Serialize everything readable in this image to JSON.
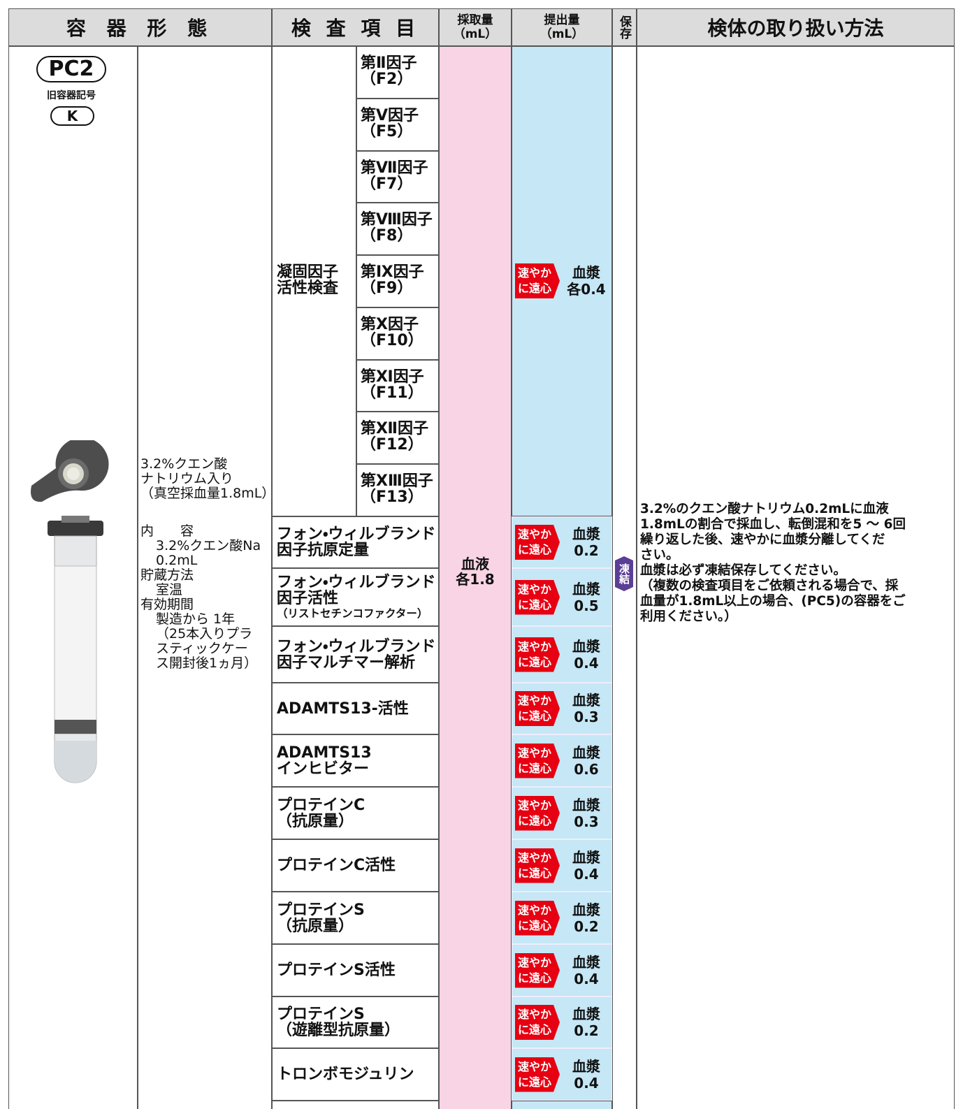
{
  "header": {
    "container": "容 器 形 態",
    "test": "検 査 項 目",
    "collection": [
      "採取量",
      "（mL）"
    ],
    "submission": [
      "提出量",
      "（mL）"
    ],
    "storage": "保存",
    "handling": "検体の取り扱い方法"
  },
  "container": {
    "code": "PC2",
    "old_label": "旧容器記号",
    "old_code": "K",
    "description": [
      "3.2%クエン酸",
      "ナトリウム入り",
      "（真空採血量1.8mL）"
    ],
    "contents_label": "内　　容",
    "contents": [
      "3.2%クエン酸Na",
      "0.2mL"
    ],
    "storage_label": "貯蔵方法",
    "storage": "室温",
    "expiry_label": "有効期間",
    "expiry": [
      "製造から 1年",
      "（25本入りプラ",
      "スティックケー",
      "ス開封後1ヵ月）"
    ]
  },
  "group": {
    "name": [
      "凝固因子",
      "活性検査"
    ],
    "items": [
      [
        "第Ⅱ因子",
        "（F2）"
      ],
      [
        "第Ⅴ因子",
        "（F5）"
      ],
      [
        "第Ⅶ因子",
        "（F7）"
      ],
      [
        "第Ⅷ因子",
        "（F8）"
      ],
      [
        "第Ⅸ因子",
        "（F9）"
      ],
      [
        "第Ⅹ因子",
        "（F10）"
      ],
      [
        "第Ⅺ因子",
        "（F11）"
      ],
      [
        "第Ⅻ因子",
        "（F12）"
      ],
      [
        "第ⅩⅢ因子",
        "（F13）"
      ]
    ],
    "badge": [
      "速やか",
      "に遠心"
    ],
    "amount": [
      "血漿",
      "各0.4"
    ]
  },
  "tests": [
    {
      "name": [
        "フォン・ウィルブランド",
        "因子抗原定量"
      ],
      "badge": [
        "速やか",
        "に遠心"
      ],
      "amount": [
        "血漿",
        "0.2"
      ]
    },
    {
      "name": [
        "フォン・ウィルブランド",
        "因子活性",
        "（リストセチンコファクター）"
      ],
      "badge": [
        "速やか",
        "に遠心"
      ],
      "amount": [
        "血漿",
        "0.5"
      ]
    },
    {
      "name": [
        "フォン・ウィルブランド",
        "因子マルチマー解析"
      ],
      "badge": [
        "速やか",
        "に遠心"
      ],
      "amount": [
        "血漿",
        "0.4"
      ]
    },
    {
      "name": [
        "ADAMTS13-活性"
      ],
      "badge": [
        "速やか",
        "に遠心"
      ],
      "amount": [
        "血漿",
        "0.3"
      ]
    },
    {
      "name": [
        "ADAMTS13",
        "インヒビター"
      ],
      "badge": [
        "速やか",
        "に遠心"
      ],
      "amount": [
        "血漿",
        "0.6"
      ]
    },
    {
      "name": [
        "プロテインC",
        "（抗原量）"
      ],
      "badge": [
        "速やか",
        "に遠心"
      ],
      "amount": [
        "血漿",
        "0.3"
      ]
    },
    {
      "name": [
        "プロテインC活性"
      ],
      "badge": [
        "速やか",
        "に遠心"
      ],
      "amount": [
        "血漿",
        "0.4"
      ]
    },
    {
      "name": [
        "プロテインS",
        "（抗原量）"
      ],
      "badge": [
        "速やか",
        "に遠心"
      ],
      "amount": [
        "血漿",
        "0.2"
      ]
    },
    {
      "name": [
        "プロテインS活性"
      ],
      "badge": [
        "速やか",
        "に遠心"
      ],
      "amount": [
        "血漿",
        "0.4"
      ]
    },
    {
      "name": [
        "プロテインS",
        "（遊離型抗原量）"
      ],
      "badge": [
        "速やか",
        "に遠心"
      ],
      "amount": [
        "血漿",
        "0.2"
      ]
    },
    {
      "name": [
        "トロンボモジュリン"
      ],
      "badge": [
        "速やか",
        "に遠心"
      ],
      "amount": [
        "血漿",
        "0.4"
      ]
    }
  ],
  "collection": [
    "血液",
    "各1.8"
  ],
  "storage": "凍結",
  "handling": [
    "3.2%のクエン酸ナトリウム0.2mLに血液",
    "1.8mLの割合で採血し、転倒混和を5 ～ 6回",
    "繰り返した後、速やかに血漿分離してくだ",
    "さい。",
    "血漿は必ず凍結保存してください。",
    "（複数の検査項目をご依頼される場合で、採",
    "血量が1.8mL以上の場合、(PC5)の容器をご",
    "利用ください。）"
  ]
}
